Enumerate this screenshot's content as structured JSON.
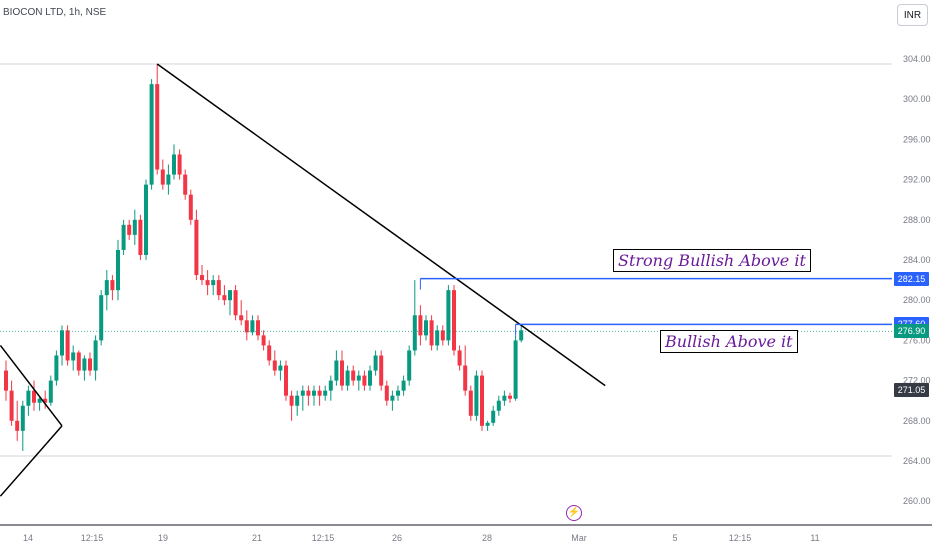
{
  "header": {
    "title": "BIOCON LTD, 1h, NSE",
    "currency_button": "INR"
  },
  "chart_data": {
    "type": "candlestick",
    "symbol": "BIOCON LTD",
    "interval": "1h",
    "exchange": "NSE",
    "currency": "INR",
    "ylim": [
      258,
      306
    ],
    "y_ticks": [
      "304.00",
      "300.00",
      "296.00",
      "292.00",
      "288.00",
      "284.00",
      "280.00",
      "276.00",
      "272.00",
      "268.00",
      "264.00",
      "260.00"
    ],
    "x_ticks": [
      "14",
      "12:15",
      "19",
      "21",
      "12:15",
      "26",
      "28",
      "Mar",
      "5",
      "12:15",
      "11"
    ],
    "candles": [
      [
        273.0,
        274.0,
        270.0,
        271.0
      ],
      [
        271.0,
        272.0,
        267.5,
        268.0
      ],
      [
        268.0,
        270.0,
        266.0,
        267.0
      ],
      [
        267.0,
        270.0,
        265.0,
        269.5
      ],
      [
        269.5,
        271.5,
        268.5,
        271.0
      ],
      [
        271.0,
        272.0,
        269.0,
        269.8
      ],
      [
        269.8,
        270.5,
        269.0,
        270.2
      ],
      [
        270.2,
        271.0,
        269.2,
        269.8
      ],
      [
        269.8,
        272.5,
        269.5,
        272.0
      ],
      [
        272.0,
        275.0,
        271.5,
        274.5
      ],
      [
        274.5,
        277.5,
        273.5,
        277.0
      ],
      [
        277.0,
        277.5,
        273.5,
        274.0
      ],
      [
        274.0,
        275.5,
        273.0,
        274.8
      ],
      [
        274.8,
        275.0,
        272.5,
        273.0
      ],
      [
        273.0,
        274.5,
        272.0,
        274.2
      ],
      [
        274.2,
        274.8,
        272.5,
        273.0
      ],
      [
        273.0,
        276.5,
        272.0,
        276.0
      ],
      [
        276.0,
        281.0,
        275.5,
        280.5
      ],
      [
        280.5,
        283.0,
        279.0,
        282.0
      ],
      [
        282.0,
        282.5,
        280.0,
        281.0
      ],
      [
        281.0,
        286.0,
        280.0,
        285.0
      ],
      [
        285.0,
        288.0,
        284.5,
        287.5
      ],
      [
        287.5,
        288.0,
        286.0,
        286.5
      ],
      [
        286.5,
        289.0,
        285.5,
        288.0
      ],
      [
        288.0,
        288.5,
        284.0,
        284.5
      ],
      [
        284.5,
        292.0,
        284.0,
        291.5
      ],
      [
        291.5,
        302.0,
        291.0,
        301.5
      ],
      [
        301.5,
        303.5,
        292.5,
        293.0
      ],
      [
        293.0,
        294.0,
        291.0,
        291.5
      ],
      [
        291.5,
        293.5,
        290.5,
        292.5
      ],
      [
        292.5,
        295.5,
        292.0,
        294.5
      ],
      [
        294.5,
        295.0,
        292.0,
        292.5
      ],
      [
        292.5,
        293.0,
        290.0,
        290.5
      ],
      [
        290.5,
        291.0,
        287.5,
        288.0
      ],
      [
        288.0,
        289.0,
        282.0,
        282.5
      ],
      [
        282.5,
        283.5,
        281.5,
        282.0
      ],
      [
        282.0,
        283.0,
        280.5,
        281.5
      ],
      [
        281.5,
        282.5,
        280.5,
        282.0
      ],
      [
        282.0,
        282.5,
        280.0,
        280.5
      ],
      [
        280.5,
        281.5,
        279.5,
        280.0
      ],
      [
        280.0,
        281.0,
        278.5,
        281.0
      ],
      [
        281.0,
        281.5,
        278.0,
        278.5
      ],
      [
        278.5,
        280.0,
        277.5,
        278.0
      ],
      [
        278.0,
        279.0,
        276.0,
        276.8
      ],
      [
        276.8,
        278.5,
        276.5,
        278.0
      ],
      [
        278.0,
        278.5,
        276.0,
        276.5
      ],
      [
        276.5,
        277.0,
        275.0,
        275.5
      ],
      [
        275.5,
        276.0,
        273.5,
        274.0
      ],
      [
        274.0,
        275.0,
        272.5,
        273.0
      ],
      [
        273.0,
        274.0,
        272.0,
        273.5
      ],
      [
        273.5,
        274.0,
        270.0,
        270.5
      ],
      [
        270.5,
        271.0,
        268.0,
        269.5
      ],
      [
        269.5,
        271.0,
        268.5,
        270.5
      ],
      [
        270.5,
        271.5,
        269.0,
        271.0
      ],
      [
        271.0,
        271.5,
        269.5,
        270.5
      ],
      [
        270.5,
        271.5,
        269.5,
        271.0
      ],
      [
        271.0,
        271.5,
        269.5,
        270.5
      ],
      [
        270.5,
        271.5,
        270.0,
        271.0
      ],
      [
        271.0,
        272.5,
        270.0,
        272.0
      ],
      [
        272.0,
        275.0,
        271.5,
        274.0
      ],
      [
        274.0,
        275.0,
        271.0,
        271.5
      ],
      [
        271.5,
        273.5,
        271.0,
        273.0
      ],
      [
        273.0,
        273.5,
        271.5,
        272.0
      ],
      [
        272.0,
        273.0,
        271.0,
        272.5
      ],
      [
        272.5,
        273.0,
        271.0,
        271.5
      ],
      [
        271.5,
        273.5,
        271.0,
        273.0
      ],
      [
        273.0,
        275.0,
        272.5,
        274.5
      ],
      [
        274.5,
        275.0,
        271.0,
        271.5
      ],
      [
        271.5,
        272.0,
        269.5,
        270.0
      ],
      [
        270.0,
        271.0,
        269.0,
        270.5
      ],
      [
        270.5,
        271.5,
        270.0,
        271.0
      ],
      [
        271.0,
        272.5,
        270.5,
        272.0
      ],
      [
        272.0,
        275.5,
        271.5,
        275.0
      ],
      [
        275.0,
        282.0,
        274.5,
        278.5
      ],
      [
        278.5,
        279.5,
        275.5,
        276.5
      ],
      [
        276.5,
        278.5,
        276.0,
        278.0
      ],
      [
        278.0,
        278.5,
        275.0,
        275.5
      ],
      [
        275.5,
        277.5,
        275.0,
        277.0
      ],
      [
        277.0,
        277.5,
        275.5,
        276.0
      ],
      [
        276.0,
        281.5,
        275.5,
        281.0
      ],
      [
        281.0,
        281.5,
        274.5,
        275.0
      ],
      [
        275.0,
        275.5,
        273.0,
        273.5
      ],
      [
        273.5,
        275.5,
        270.5,
        271.0
      ],
      [
        271.0,
        271.5,
        268.0,
        268.5
      ],
      [
        268.5,
        273.0,
        268.0,
        272.5
      ],
      [
        272.5,
        273.0,
        267.0,
        267.5
      ],
      [
        267.5,
        268.0,
        267.0,
        267.8
      ],
      [
        267.8,
        269.5,
        267.5,
        269.0
      ],
      [
        269.0,
        270.5,
        268.5,
        270.0
      ],
      [
        270.0,
        271.0,
        269.5,
        270.5
      ],
      [
        270.5,
        270.8,
        269.8,
        270.2
      ],
      [
        270.2,
        276.5,
        270.0,
        276.0
      ],
      [
        276.0,
        277.6,
        275.8,
        277.0
      ]
    ],
    "trendlines": [
      {
        "from": [
          27,
          303.5
        ],
        "to": [
          107,
          271.5
        ]
      },
      {
        "from": [
          -1,
          275.5
        ],
        "to": [
          10,
          267.5
        ]
      },
      {
        "from": [
          10,
          267.5
        ],
        "to": [
          -1,
          260.5
        ]
      }
    ],
    "horizontal_levels": [
      {
        "price": 282.15,
        "label": "Strong Bullish Above it",
        "from": 74
      },
      {
        "price": 277.6,
        "label": "Bullish Above it",
        "from": 91
      }
    ],
    "last_price": 276.9,
    "price_tags": [
      {
        "value": "282.15",
        "color": "#2962ff"
      },
      {
        "value": "277.60",
        "color": "#2962ff"
      },
      {
        "value": "276.90",
        "color": "#089981"
      },
      {
        "value": "271.05",
        "color": "#363a45"
      }
    ],
    "colors": {
      "up": "#089981",
      "down": "#f23645",
      "level": "#2962ff",
      "trendline": "#000000"
    }
  }
}
